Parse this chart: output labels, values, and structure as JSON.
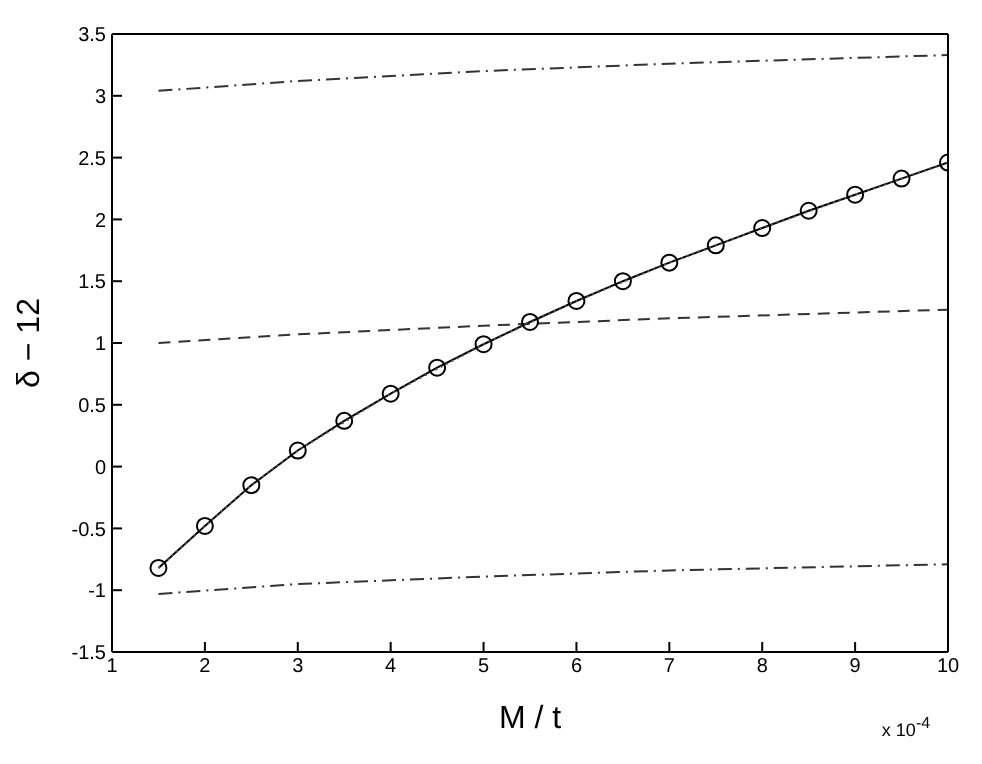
{
  "chart_data": {
    "type": "line",
    "xlabel": "M / t",
    "ylabel": "δ − 12",
    "annotations": [
      "x 10$^{-4}$"
    ],
    "xlim": [
      1,
      10
    ],
    "xticks": [
      1,
      2,
      3,
      4,
      5,
      6,
      7,
      8,
      9,
      10
    ],
    "ylim": [
      -1.5,
      3.5
    ],
    "yticks": [
      -1.5,
      -1,
      -0.5,
      0,
      0.5,
      1,
      1.5,
      2,
      2.5,
      3,
      3.5
    ],
    "series": [
      {
        "color": "#000000",
        "line_style": "solid",
        "marker": "circle",
        "x": [
          1.5,
          2,
          2.5,
          3,
          3.5,
          4,
          4.5,
          5,
          5.5,
          6,
          6.5,
          7,
          7.5,
          8,
          8.5,
          9,
          9.5,
          10
        ],
        "values": [
          -0.82,
          -0.48,
          -0.15,
          0.13,
          0.37,
          0.59,
          0.8,
          0.99,
          1.17,
          1.34,
          1.5,
          1.65,
          1.79,
          1.93,
          2.07,
          2.2,
          2.33,
          2.46
        ]
      },
      {
        "color": "#555555",
        "line_style": "dotted",
        "marker": "none",
        "x": [
          1.5,
          2,
          2.5,
          3,
          4,
          5,
          6,
          7,
          8,
          9,
          10
        ],
        "values": [
          -0.82,
          -0.48,
          -0.15,
          0.13,
          0.59,
          0.99,
          1.34,
          1.65,
          1.93,
          2.2,
          2.46
        ]
      },
      {
        "color": "#333333",
        "line_style": "dashed",
        "marker": "none",
        "x": [
          1.5,
          3,
          5,
          7,
          10
        ],
        "values": [
          1.0,
          1.07,
          1.14,
          1.2,
          1.27
        ]
      },
      {
        "color": "#333333",
        "line_style": "dashdot",
        "marker": "none",
        "x": [
          1.5,
          3,
          5,
          7,
          10
        ],
        "values": [
          3.04,
          3.12,
          3.2,
          3.26,
          3.33
        ]
      },
      {
        "color": "#333333",
        "line_style": "dashdot",
        "marker": "none",
        "x": [
          1.5,
          3,
          5,
          7,
          10
        ],
        "values": [
          -1.03,
          -0.95,
          -0.89,
          -0.84,
          -0.79
        ]
      }
    ]
  }
}
